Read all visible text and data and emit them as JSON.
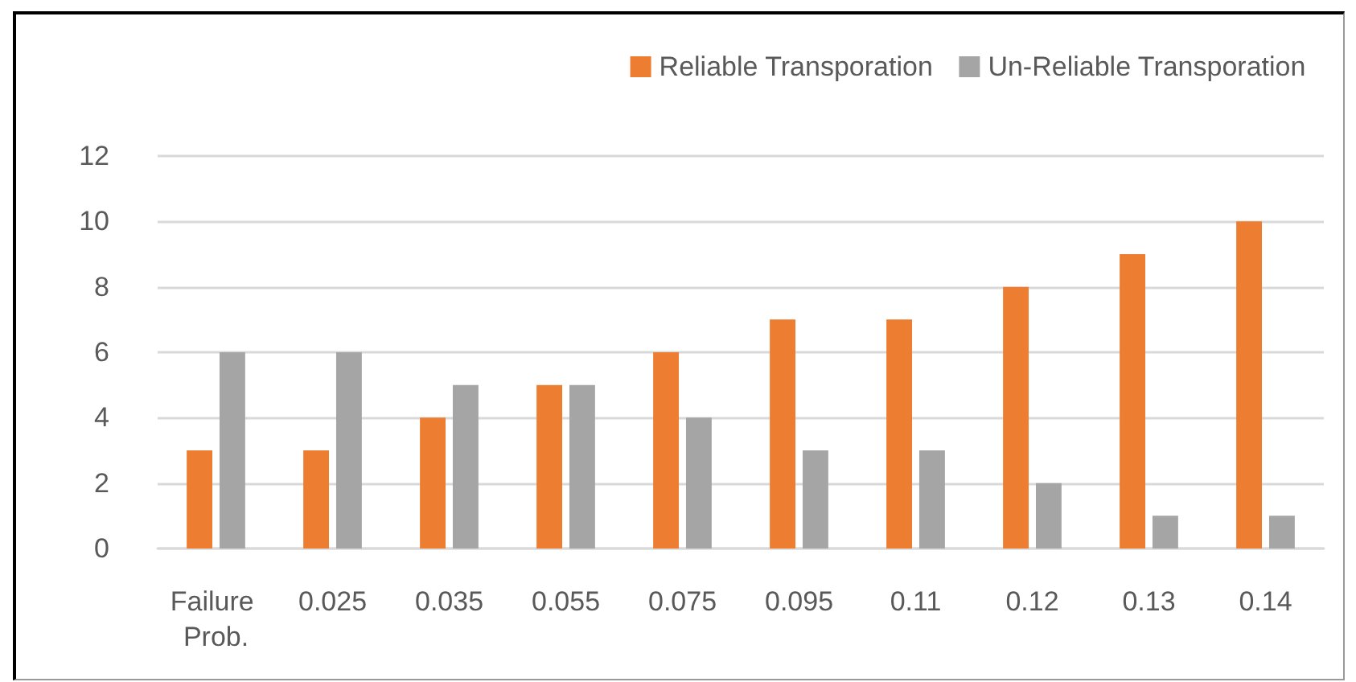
{
  "chart_data": {
    "type": "bar",
    "categories": [
      "Failure Prob.",
      "0.025",
      "0.035",
      "0.055",
      "0.075",
      "0.095",
      "0.11",
      "0.12",
      "0.13",
      "0.14"
    ],
    "series": [
      {
        "name": "Reliable Transporation",
        "color": "#ed7d31",
        "values": [
          3,
          3,
          4,
          5,
          6,
          7,
          7,
          8,
          9,
          10
        ]
      },
      {
        "name": "Un-Reliable Transporation",
        "color": "#a5a5a5",
        "values": [
          6,
          6,
          5,
          5,
          4,
          3,
          3,
          2,
          1,
          1
        ]
      }
    ],
    "ylim": [
      0,
      12
    ],
    "yticks": [
      0,
      2,
      4,
      6,
      8,
      10,
      12
    ],
    "grid": "y",
    "legend": "top right"
  }
}
